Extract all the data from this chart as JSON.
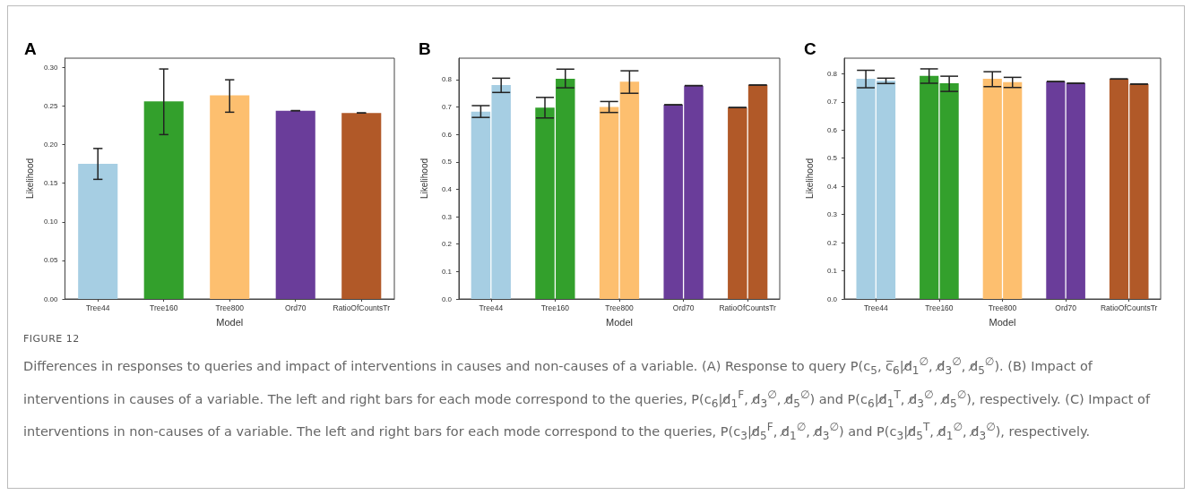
{
  "chart_data": [
    {
      "type": "bar",
      "title": "A",
      "xlabel": "Model",
      "ylabel": "Likelihood",
      "categories": [
        "Tree44",
        "Tree160",
        "Tree800",
        "Ord70",
        "RatioOfCountsTr"
      ],
      "ylim": [
        0,
        0.312
      ],
      "yticks": [
        {
          "value": 0,
          "label": "0.00"
        },
        {
          "value": 0.05,
          "label": "0.05"
        },
        {
          "value": 0.1,
          "label": "0.10"
        },
        {
          "value": 0.15,
          "label": "0.15"
        },
        {
          "value": 0.2,
          "label": "0.20"
        },
        {
          "value": 0.25,
          "label": "0.25"
        },
        {
          "value": 0.3,
          "label": "0.30"
        }
      ],
      "series": [
        {
          "colors": [
            "#a6cee3",
            "#33a02c",
            "#fdbf6f",
            "#6a3d9a",
            "#b15928"
          ],
          "values": [
            0.175,
            0.256,
            0.264,
            0.244,
            0.241
          ],
          "errors": [
            [
              0.155,
              0.195
            ],
            [
              0.213,
              0.298
            ],
            [
              0.242,
              0.284
            ],
            [
              0.244,
              0.244
            ],
            [
              0.241,
              0.241
            ]
          ]
        }
      ]
    },
    {
      "type": "bar",
      "title": "B",
      "xlabel": "Model",
      "ylabel": "Likelihood",
      "categories": [
        "Tree44",
        "Tree160",
        "Tree800",
        "Ord70",
        "RatioOfCountsTr"
      ],
      "ylim": [
        0,
        0.878
      ],
      "yticks": [
        {
          "value": 0,
          "label": "0.0"
        },
        0.1,
        0.2,
        0.3,
        0.4,
        0.5,
        0.6,
        0.7,
        0.8
      ],
      "series": [
        {
          "colors": [
            "#a6cee3",
            "#33a02c",
            "#fdbf6f",
            "#6a3d9a",
            "#b15928"
          ],
          "values": [
            0.683,
            0.698,
            0.7,
            0.708,
            0.698
          ],
          "errors": [
            [
              0.662,
              0.705
            ],
            [
              0.66,
              0.735
            ],
            [
              0.68,
              0.72
            ],
            [
              0.708,
              0.708
            ],
            [
              0.698,
              0.698
            ]
          ]
        },
        {
          "colors": [
            "#a6cee3",
            "#33a02c",
            "#fdbf6f",
            "#6a3d9a",
            "#b15928"
          ],
          "values": [
            0.78,
            0.803,
            0.792,
            0.778,
            0.78
          ],
          "errors": [
            [
              0.753,
              0.805
            ],
            [
              0.77,
              0.838
            ],
            [
              0.75,
              0.832
            ],
            [
              0.778,
              0.778
            ],
            [
              0.78,
              0.78
            ]
          ]
        }
      ]
    },
    {
      "type": "bar",
      "title": "C",
      "xlabel": "Model",
      "ylabel": "Likelihood",
      "categories": [
        "Tree44",
        "Tree160",
        "Tree800",
        "Ord70",
        "RatioOfCountsTr"
      ],
      "ylim": [
        0,
        0.855
      ],
      "yticks": [
        {
          "value": 0,
          "label": "0.0"
        },
        0.1,
        0.2,
        0.3,
        0.4,
        0.5,
        0.6,
        0.7,
        0.8
      ],
      "series": [
        {
          "colors": [
            "#a6cee3",
            "#33a02c",
            "#fdbf6f",
            "#6a3d9a",
            "#b15928"
          ],
          "values": [
            0.782,
            0.792,
            0.782,
            0.772,
            0.781
          ],
          "errors": [
            [
              0.75,
              0.812
            ],
            [
              0.766,
              0.817
            ],
            [
              0.754,
              0.807
            ],
            [
              0.772,
              0.772
            ],
            [
              0.781,
              0.781
            ]
          ]
        },
        {
          "colors": [
            "#a6cee3",
            "#33a02c",
            "#fdbf6f",
            "#6a3d9a",
            "#b15928"
          ],
          "values": [
            0.775,
            0.766,
            0.77,
            0.766,
            0.763
          ],
          "errors": [
            [
              0.765,
              0.784
            ],
            [
              0.737,
              0.791
            ],
            [
              0.751,
              0.787
            ],
            [
              0.766,
              0.766
            ],
            [
              0.763,
              0.763
            ]
          ]
        }
      ]
    },
    {
      "type": "other",
      "annotations": [
        "FIGURE 12",
        "Differences in responses to queries and impact of interventions in causes and non-causes of a variable. (A) Response to query P(c$_{5}$, c̅$_{6}$|d̸$_{1}$$^{∅}$, d̸$_{3}$$^{∅}$, d̸$_{5}$$^{∅}$). (B) Impact of interventions in causes of a variable. The left and right bars for each mode correspond to the queries, P(c$_{6}$|d̸$_{1}$$^{F}$, d̸$_{3}$$^{∅}$, d̸$_{5}$$^{∅}$) and P(c$_{6}$|d̸$_{1}$$^{T}$, d̸$_{3}$$^{∅}$, d̸$_{5}$$^{∅}$), respectively. (C) Impact of interventions in non-causes of a variable. The left and right bars for each mode correspond to the queries, P(c$_{3}$|d̸$_{5}$$^{F}$, d̸$_{1}$$^{∅}$, d̸$_{3}$$^{∅}$) and P(c$_{3}$|d̸$_{5}$$^{T}$, d̸$_{1}$$^{∅}$, d̸$_{3}$$^{∅}$), respectively."
      ]
    }
  ]
}
